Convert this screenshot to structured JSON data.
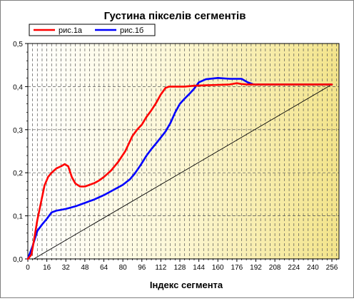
{
  "chart_data": {
    "type": "line",
    "title": "Густина пікселів сегментів",
    "xlabel": "Індекс сегмента",
    "ylabel": "",
    "xlim": [
      0,
      262
    ],
    "ylim": [
      0,
      0.5
    ],
    "xticks": [
      0,
      16,
      32,
      48,
      64,
      80,
      96,
      112,
      128,
      144,
      160,
      176,
      192,
      208,
      224,
      240,
      256
    ],
    "yticks": [
      0,
      0.1,
      0.2,
      0.3,
      0.4,
      0.5
    ],
    "ytick_labels": [
      "0,0",
      "0,1",
      "0,2",
      "0,3",
      "0,4",
      "0,5"
    ],
    "grid": true,
    "legend": "top-left",
    "series": [
      {
        "name": "рис.1а",
        "color": "#ff0000",
        "x": [
          0,
          3,
          5,
          8,
          11,
          14,
          17,
          20,
          24,
          28,
          31,
          34,
          37,
          40,
          44,
          48,
          52,
          56,
          60,
          64,
          70,
          76,
          82,
          88,
          92,
          96,
          100,
          104,
          108,
          112,
          116,
          119,
          122,
          126,
          132,
          140,
          150,
          160,
          170,
          176,
          180,
          185,
          190,
          200,
          220,
          240,
          256
        ],
        "values": [
          0.0,
          0.01,
          0.04,
          0.09,
          0.13,
          0.17,
          0.19,
          0.2,
          0.21,
          0.215,
          0.22,
          0.215,
          0.19,
          0.175,
          0.168,
          0.168,
          0.172,
          0.176,
          0.182,
          0.19,
          0.205,
          0.225,
          0.25,
          0.285,
          0.3,
          0.312,
          0.33,
          0.345,
          0.362,
          0.382,
          0.397,
          0.4,
          0.4,
          0.4,
          0.4,
          0.402,
          0.403,
          0.404,
          0.405,
          0.408,
          0.406,
          0.405,
          0.405,
          0.405,
          0.405,
          0.405,
          0.405
        ]
      },
      {
        "name": "рис.1б",
        "color": "#0000ff",
        "x": [
          0,
          4,
          8,
          12,
          16,
          20,
          24,
          32,
          40,
          48,
          56,
          64,
          72,
          80,
          86,
          90,
          95,
          100,
          104,
          108,
          112,
          116,
          120,
          124,
          128,
          132,
          136,
          140,
          144,
          150,
          160,
          170,
          176,
          180,
          185,
          190,
          200,
          220,
          240,
          256
        ],
        "values": [
          0.0,
          0.03,
          0.065,
          0.08,
          0.093,
          0.108,
          0.112,
          0.116,
          0.122,
          0.13,
          0.138,
          0.148,
          0.16,
          0.172,
          0.185,
          0.198,
          0.218,
          0.24,
          0.255,
          0.268,
          0.282,
          0.296,
          0.315,
          0.34,
          0.36,
          0.372,
          0.383,
          0.395,
          0.41,
          0.417,
          0.42,
          0.418,
          0.418,
          0.418,
          0.41,
          0.405,
          0.405,
          0.405,
          0.405,
          0.405
        ]
      },
      {
        "name": "",
        "color": "#000000",
        "x": [
          5,
          256
        ],
        "values": [
          0.0,
          0.405
        ]
      }
    ]
  }
}
